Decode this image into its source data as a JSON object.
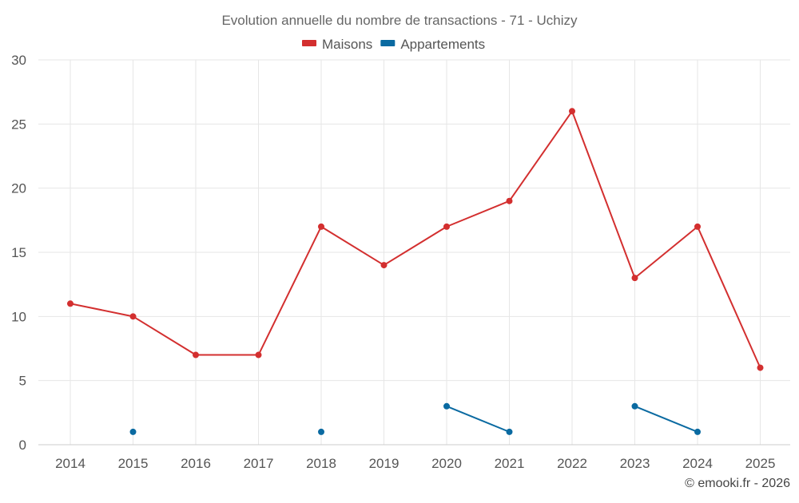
{
  "chart_data": {
    "type": "line",
    "title": "Evolution annuelle du nombre de transactions - 71 - Uchizy",
    "categories": [
      "2014",
      "2015",
      "2016",
      "2017",
      "2018",
      "2019",
      "2020",
      "2021",
      "2022",
      "2023",
      "2024",
      "2025"
    ],
    "ylim": [
      0,
      30
    ],
    "yticks": [
      0,
      5,
      10,
      15,
      20,
      25,
      30
    ],
    "grid": true,
    "legend_position": "top-center",
    "series": [
      {
        "name": "Maisons",
        "color": "#d32f2f",
        "values": [
          11,
          10,
          7,
          7,
          17,
          14,
          17,
          19,
          26,
          13,
          17,
          6
        ]
      },
      {
        "name": "Appartements",
        "color": "#0a6aa1",
        "values": [
          null,
          1,
          null,
          null,
          1,
          null,
          3,
          1,
          null,
          3,
          1,
          null
        ]
      }
    ],
    "credit": "© emooki.fr - 2026"
  }
}
